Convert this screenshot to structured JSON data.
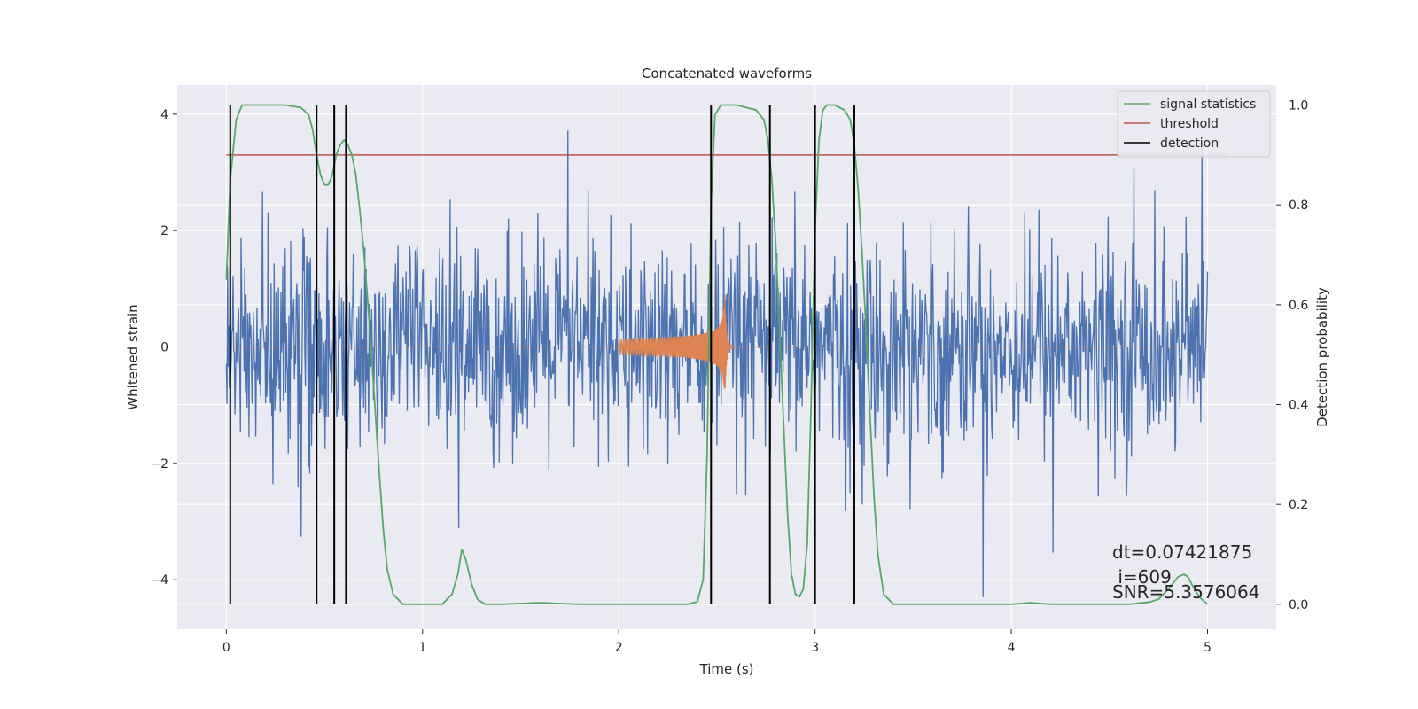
{
  "chart_data": {
    "type": "line",
    "title": "Concatenated waveforms",
    "xlabel": "Time (s)",
    "ylabel": "Whitened strain",
    "y2label": "Detection probability",
    "xlim": [
      -0.25,
      5.35
    ],
    "ylim": [
      -4.85,
      4.5
    ],
    "y2lim": [
      -0.05,
      1.04
    ],
    "x_ticks": [
      0,
      1,
      2,
      3,
      4,
      5
    ],
    "y_ticks": [
      -4,
      -2,
      0,
      2,
      4
    ],
    "y2_ticks": [
      0.0,
      0.2,
      0.4,
      0.6,
      0.8,
      1.0
    ],
    "grid": true,
    "legend_position": "top-right",
    "series": [
      {
        "name": "signal statistics",
        "color": "#55a868",
        "axis": "right",
        "x": [
          0.0,
          0.02,
          0.05,
          0.08,
          0.15,
          0.3,
          0.38,
          0.42,
          0.44,
          0.46,
          0.48,
          0.5,
          0.52,
          0.54,
          0.56,
          0.58,
          0.6,
          0.62,
          0.64,
          0.66,
          0.68,
          0.7,
          0.72,
          0.74,
          0.76,
          0.78,
          0.8,
          0.82,
          0.85,
          0.9,
          1.0,
          1.1,
          1.15,
          1.18,
          1.2,
          1.22,
          1.25,
          1.28,
          1.32,
          1.4,
          1.6,
          1.8,
          2.0,
          2.2,
          2.35,
          2.4,
          2.43,
          2.45,
          2.47,
          2.49,
          2.52,
          2.6,
          2.7,
          2.74,
          2.76,
          2.78,
          2.8,
          2.83,
          2.86,
          2.88,
          2.9,
          2.92,
          2.94,
          2.96,
          2.98,
          3.0,
          3.02,
          3.04,
          3.06,
          3.1,
          3.15,
          3.18,
          3.2,
          3.22,
          3.24,
          3.26,
          3.28,
          3.3,
          3.32,
          3.35,
          3.4,
          3.6,
          3.8,
          4.0,
          4.1,
          4.2,
          4.4,
          4.6,
          4.7,
          4.75,
          4.8,
          4.85,
          4.88,
          4.9,
          4.92,
          4.95,
          4.97,
          5.0
        ],
        "y": [
          0.65,
          0.85,
          0.97,
          1.0,
          1.0,
          1.0,
          0.995,
          0.98,
          0.95,
          0.9,
          0.86,
          0.84,
          0.84,
          0.86,
          0.9,
          0.92,
          0.93,
          0.92,
          0.9,
          0.86,
          0.79,
          0.71,
          0.61,
          0.5,
          0.38,
          0.26,
          0.15,
          0.07,
          0.02,
          0.0,
          0.0,
          0.0,
          0.02,
          0.06,
          0.11,
          0.09,
          0.04,
          0.01,
          0.0,
          0.0,
          0.003,
          0.0,
          0.0,
          0.0,
          0.0,
          0.005,
          0.05,
          0.3,
          0.8,
          0.98,
          1.0,
          1.0,
          0.99,
          0.97,
          0.93,
          0.85,
          0.72,
          0.45,
          0.18,
          0.06,
          0.02,
          0.015,
          0.03,
          0.12,
          0.4,
          0.75,
          0.93,
          0.99,
          1.0,
          1.0,
          0.99,
          0.97,
          0.92,
          0.83,
          0.7,
          0.55,
          0.38,
          0.22,
          0.1,
          0.02,
          0.0,
          0.0,
          0.0,
          0.0,
          0.003,
          0.0,
          0.0,
          0.0,
          0.004,
          0.01,
          0.03,
          0.055,
          0.06,
          0.055,
          0.04,
          0.02,
          0.01,
          0.0
        ]
      },
      {
        "name": "threshold",
        "color": "#c44e52",
        "axis": "right",
        "x": [
          0.0,
          5.1
        ],
        "y": [
          0.9,
          0.9
        ]
      },
      {
        "name": "detection",
        "color": "#000000",
        "axis": "right",
        "type": "vlines",
        "x": [
          0.02,
          0.46,
          0.55,
          0.61,
          2.47,
          2.77,
          3.0,
          3.2
        ],
        "y_range": [
          0.0,
          1.0
        ]
      }
    ],
    "background_series": [
      {
        "kind": "noise",
        "color": "#4c72b0",
        "x_range": [
          0.0,
          5.0
        ],
        "description_axis": "left"
      },
      {
        "kind": "chirp",
        "color": "#dd8452",
        "x_range": [
          2.0,
          2.55
        ],
        "peak_amplitude": 0.95
      }
    ],
    "annotations": [
      "dt=0.07421875",
      " i=609",
      "SNR=5.3576064"
    ]
  }
}
